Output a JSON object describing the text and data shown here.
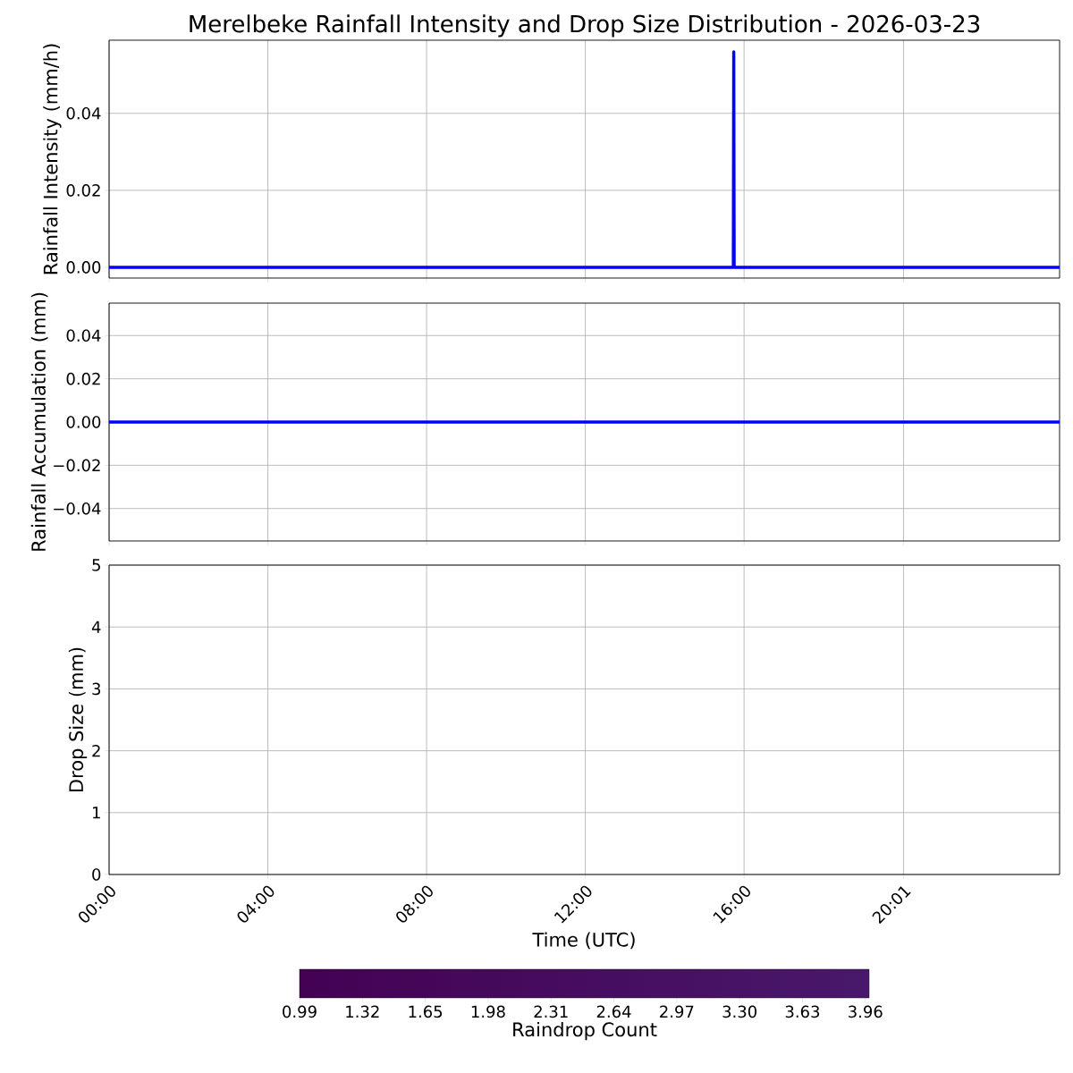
{
  "chart_data": [
    {
      "type": "line",
      "title": "Merelbeke Rainfall Intensity and Drop Size Distribution - 2026-03-23",
      "ylabel": "Rainfall Intensity (mm/h)",
      "series": [
        {
          "color": "#0000ff",
          "x": [
            0,
            15.73,
            15.74,
            15.75,
            23.95
          ],
          "values": [
            0,
            0,
            0.056,
            0,
            0
          ]
        }
      ],
      "xlim": [
        0,
        23.95
      ],
      "xticks": [
        {
          "value": 0,
          "label": null
        },
        {
          "value": 4,
          "label": null
        },
        {
          "value": 8,
          "label": null
        },
        {
          "value": 12,
          "label": null
        },
        {
          "value": 16,
          "label": null
        },
        {
          "value": 20.0167,
          "label": null
        }
      ],
      "ylim": [
        -0.0028,
        0.059
      ],
      "yticks": [
        {
          "value": 0,
          "label": "0.00"
        },
        {
          "value": 0.02,
          "label": "0.02"
        },
        {
          "value": 0.04,
          "label": "0.04"
        }
      ],
      "grid": true,
      "tick_labels": "y"
    },
    {
      "type": "line",
      "ylabel": "Rainfall Accumulation (mm)",
      "series": [
        {
          "color": "#0000ff",
          "x": [
            0,
            23.95
          ],
          "values": [
            0,
            0
          ]
        }
      ],
      "xlim": [
        0,
        23.95
      ],
      "xticks": [
        {
          "value": 0,
          "label": null
        },
        {
          "value": 4,
          "label": null
        },
        {
          "value": 8,
          "label": null
        },
        {
          "value": 12,
          "label": null
        },
        {
          "value": 16,
          "label": null
        },
        {
          "value": 20.0167,
          "label": null
        }
      ],
      "ylim": [
        -0.055,
        0.055
      ],
      "yticks": [
        {
          "value": -0.04,
          "label": "−0.04"
        },
        {
          "value": -0.02,
          "label": "−0.02"
        },
        {
          "value": 0,
          "label": "0.00"
        },
        {
          "value": 0.02,
          "label": "0.02"
        },
        {
          "value": 0.04,
          "label": "0.04"
        }
      ],
      "grid": true,
      "tick_labels": "y"
    },
    {
      "type": "heatmap",
      "xlabel": "Time (UTC)",
      "ylabel": "Drop Size (mm)",
      "clabel": "Raindrop Count",
      "xlim": [
        0,
        23.95
      ],
      "xticks": [
        {
          "value": 0,
          "label": "00:00"
        },
        {
          "value": 4,
          "label": "04:00"
        },
        {
          "value": 8,
          "label": "08:00"
        },
        {
          "value": 12,
          "label": "12:00"
        },
        {
          "value": 16,
          "label": "16:00"
        },
        {
          "value": 20.0167,
          "label": "20:01"
        }
      ],
      "ylim": [
        0,
        5
      ],
      "yticks": [
        0,
        1,
        2,
        3,
        4,
        5
      ],
      "clim": [
        0.99,
        3.98
      ],
      "cticks": [
        0.99,
        1.32,
        1.65,
        1.98,
        2.31,
        2.64,
        2.97,
        {
          "value": 3.3,
          "label": "3.30"
        },
        3.63,
        3.96
      ],
      "grid": true
    }
  ]
}
